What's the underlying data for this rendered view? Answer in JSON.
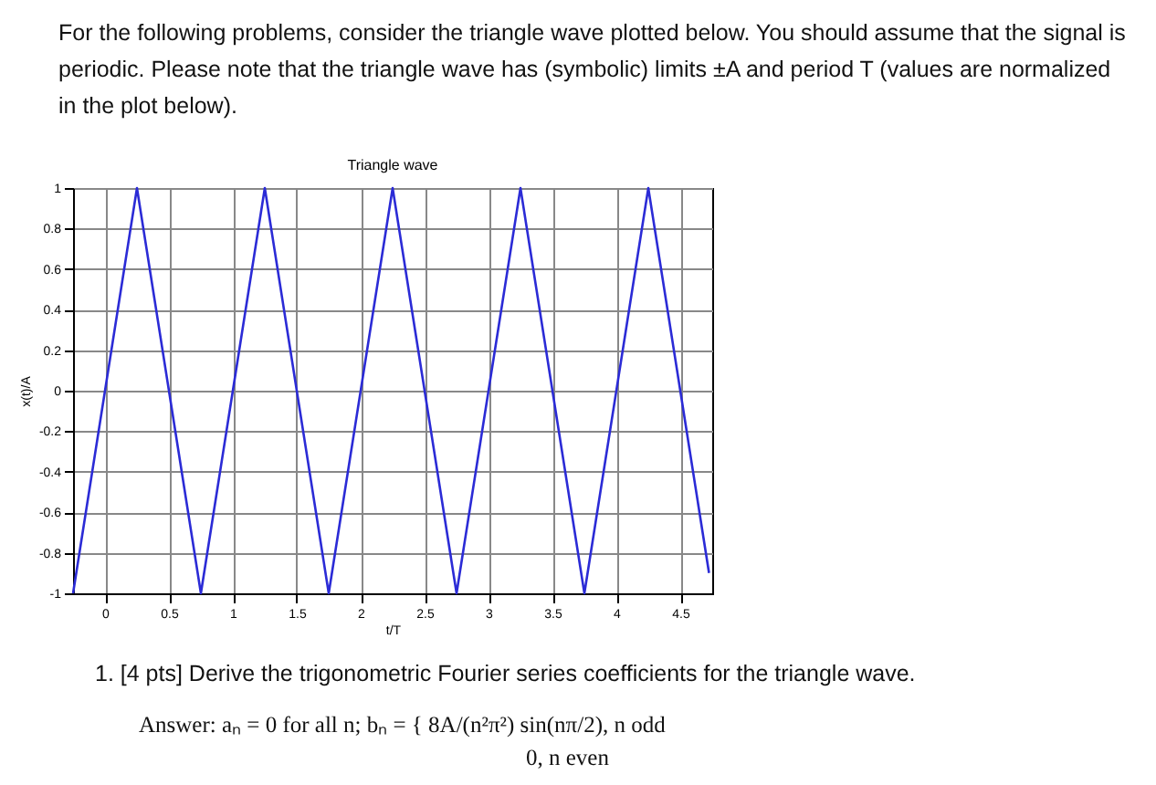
{
  "chart_data": {
    "type": "line",
    "title": "Triangle wave",
    "xlabel": "t/T",
    "ylabel": "x(t)/A",
    "annotations": [
      "For the following problems, consider the triangle wave plotted below. You should assume that the signal is periodic. Please note that the triangle wave has (symbolic) limits ±A and period T (values are normalized in the plot below).",
      "1.  [4 pts] Derive the trigonometric Fourier series coefficients for the triangle wave.",
      "Answer: aₙ = 0 for all n; bₙ = { 8A/(n²π²) sin(nπ/2),   n odd",
      "0,   n even"
    ],
    "x": [
      -0.25,
      0.25,
      0.75,
      1.25,
      1.75,
      2.25,
      2.75,
      3.25,
      3.75,
      4.25,
      4.725
    ],
    "series": [
      {
        "color": "#2b2bd6",
        "values": [
          -1,
          1,
          -1,
          1,
          -1,
          1,
          -1,
          1,
          -1,
          1,
          -0.9
        ]
      }
    ],
    "xlim": [
      -0.25,
      4.75
    ],
    "xticks": [
      0,
      0.5,
      1,
      1.5,
      2,
      2.5,
      3,
      3.5,
      4,
      4.5
    ],
    "ylim": [
      -1,
      1
    ],
    "yticks": [
      -1,
      -0.8,
      -0.6,
      -0.4,
      -0.2,
      0,
      0.2,
      0.4,
      0.6,
      0.8,
      1
    ],
    "grid": true,
    "legend": false,
    "marker": "none",
    "line_style": "solid"
  }
}
